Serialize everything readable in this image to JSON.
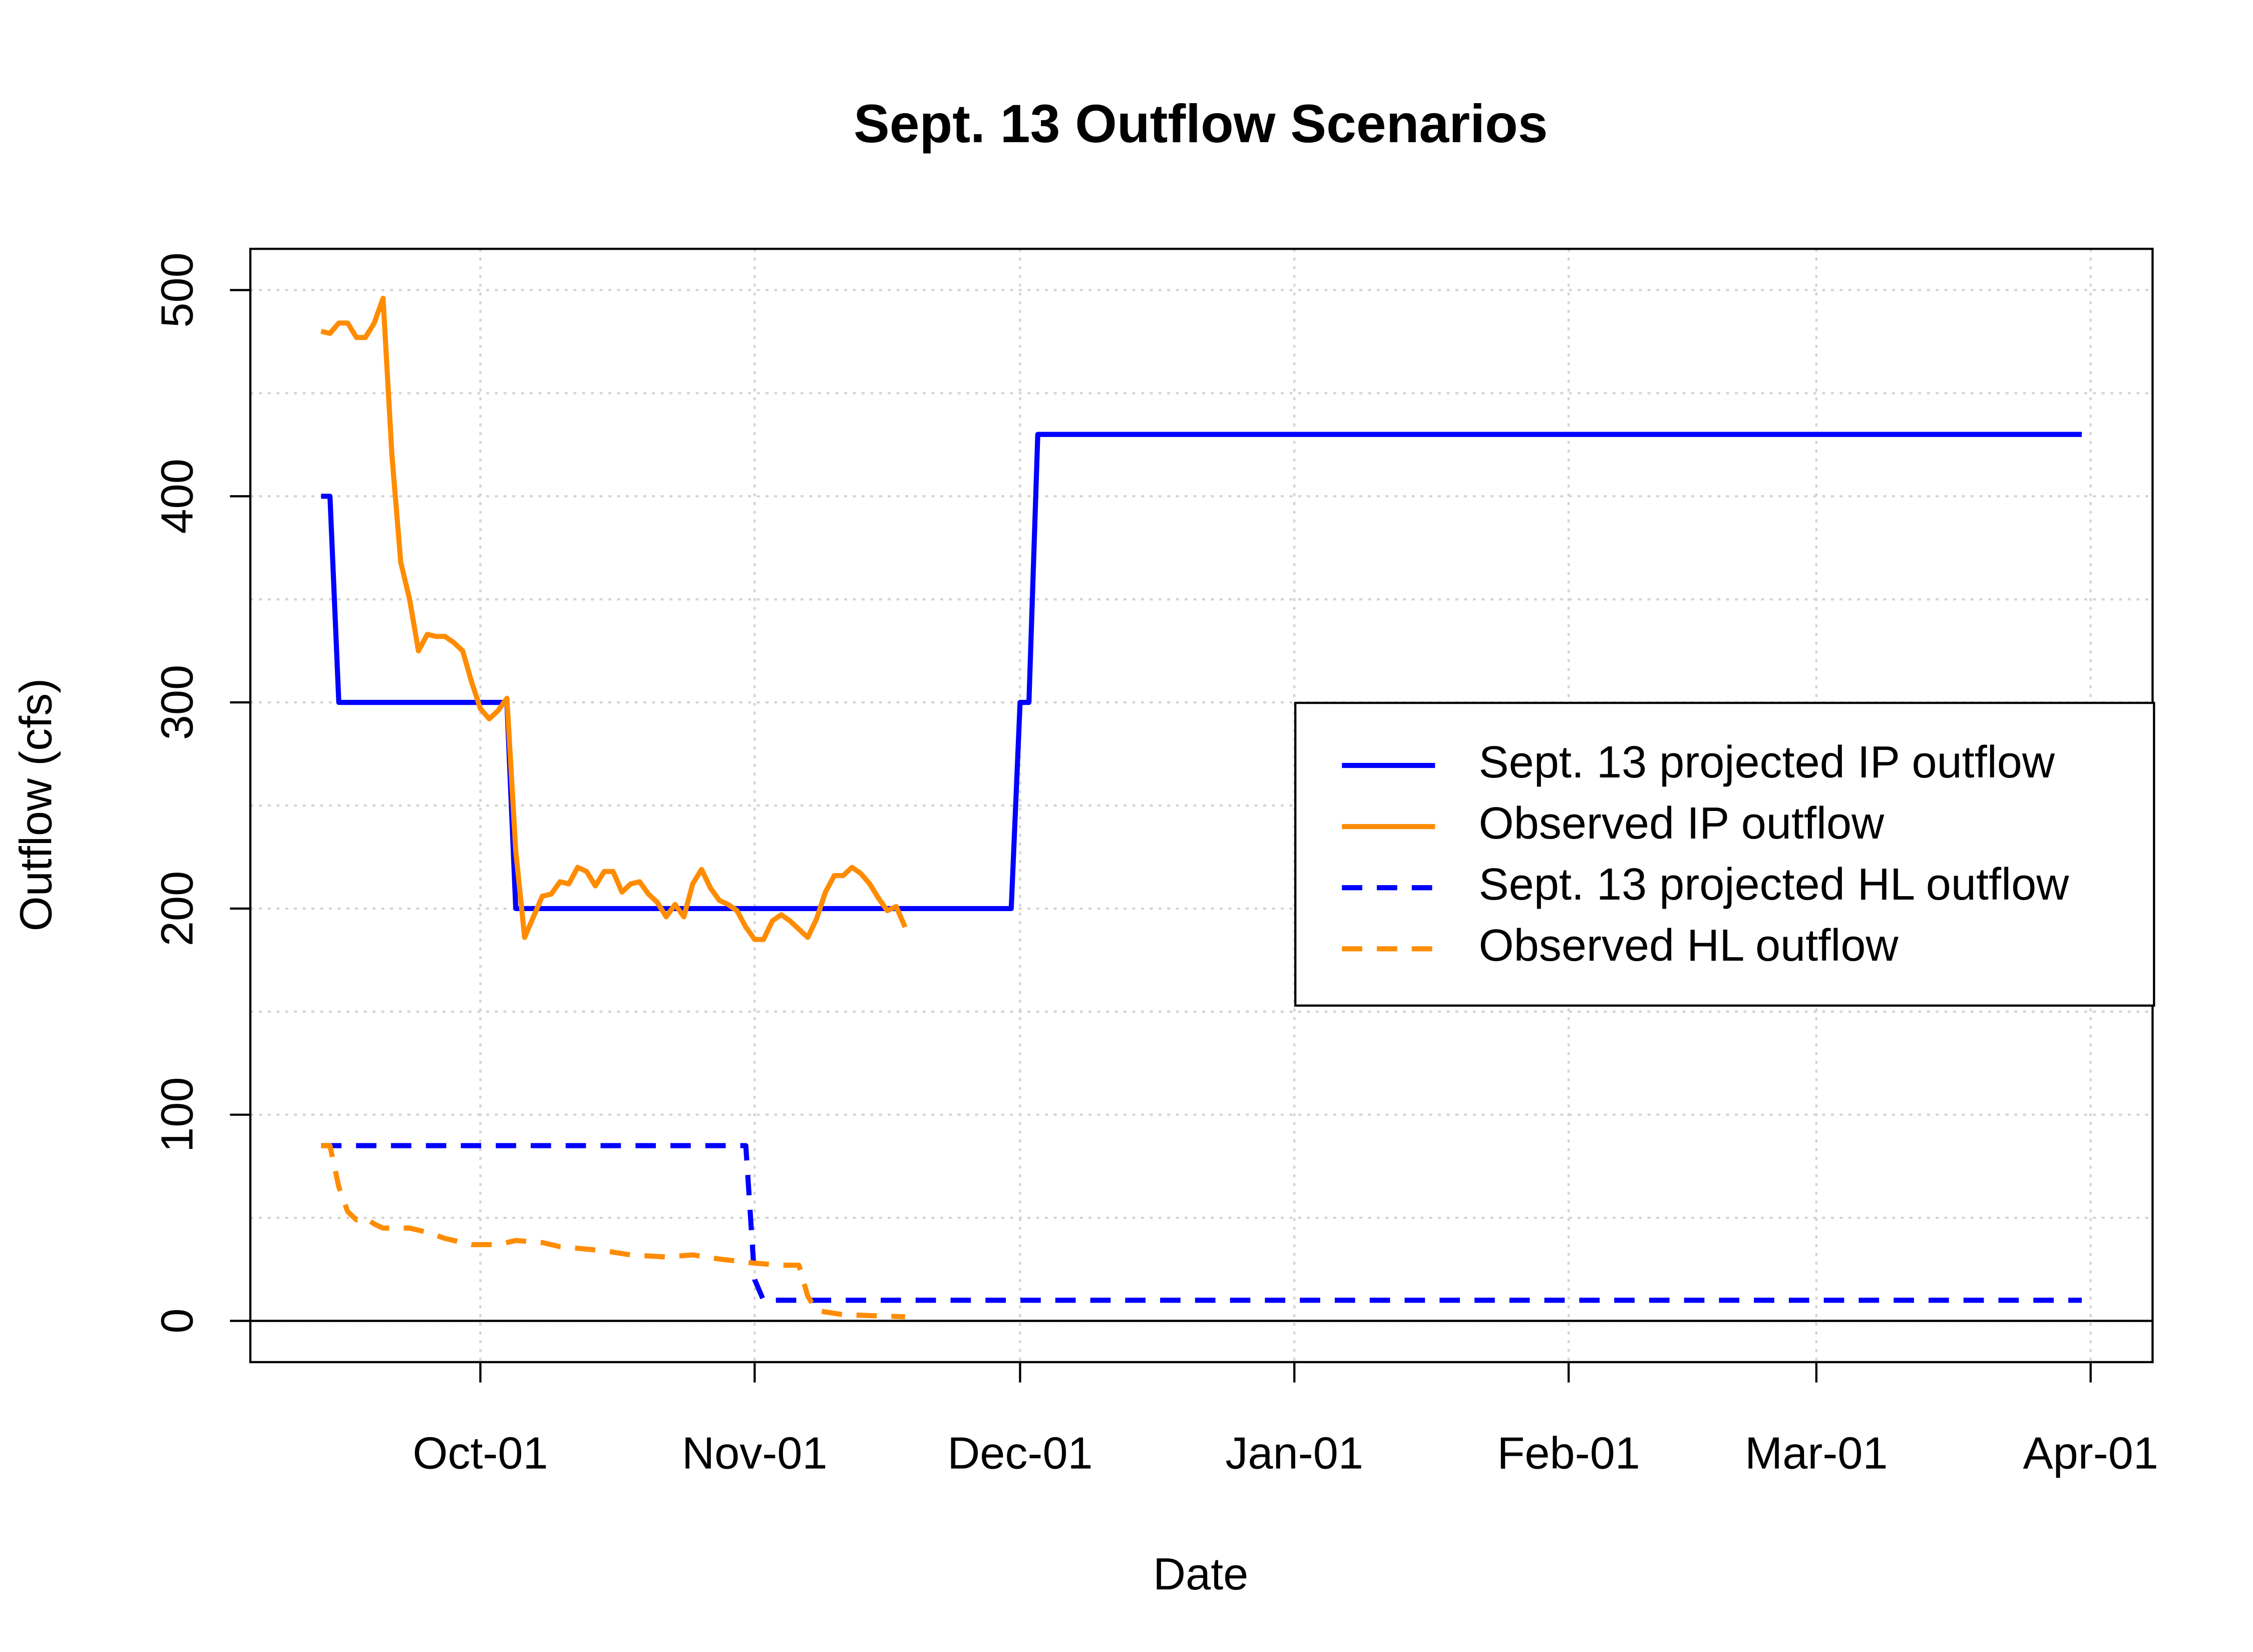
{
  "chart_data": {
    "type": "line",
    "title": "Sept. 13 Outflow Scenarios",
    "x_label": "Date",
    "y_label": "Outflow (cfs)",
    "xlim": [
      "Sep-05",
      "Apr-08"
    ],
    "xticks": [
      "Oct-01",
      "Nov-01",
      "Dec-01",
      "Jan-01",
      "Feb-01",
      "Mar-01",
      "Apr-01"
    ],
    "ylim": [
      -20,
      520
    ],
    "yticks": [
      0,
      100,
      200,
      300,
      400,
      500
    ],
    "ygrid": [
      0,
      50,
      100,
      150,
      200,
      250,
      300,
      350,
      400,
      450,
      500
    ],
    "hline": 0,
    "grid": true,
    "legend": "right",
    "series": [
      {
        "name": "Sept. 13 projected IP outflow",
        "color": "#0000ff",
        "dash": false,
        "x": [
          "Sep-13",
          "Sep-14",
          "Sep-15",
          "Oct-04",
          "Oct-05",
          "Nov-30",
          "Dec-01",
          "Dec-02",
          "Dec-03",
          "Mar-31"
        ],
        "values": [
          400,
          400,
          300,
          300,
          200,
          200,
          300,
          300,
          430,
          430
        ]
      },
      {
        "name": "Observed IP outflow",
        "color": "#ff8c00",
        "dash": false,
        "x": [
          "Sep-13",
          "Sep-14",
          "Sep-15",
          "Sep-16",
          "Sep-17",
          "Sep-18",
          "Sep-19",
          "Sep-20",
          "Sep-21",
          "Sep-22",
          "Sep-23",
          "Sep-24",
          "Sep-25",
          "Sep-26",
          "Sep-27",
          "Sep-28",
          "Sep-29",
          "Sep-30",
          "Oct-01",
          "Oct-02",
          "Oct-03",
          "Oct-04",
          "Oct-05",
          "Oct-06",
          "Oct-07",
          "Oct-08",
          "Oct-09",
          "Oct-10",
          "Oct-11",
          "Oct-12",
          "Oct-13",
          "Oct-14",
          "Oct-15",
          "Oct-16",
          "Oct-17",
          "Oct-18",
          "Oct-19",
          "Oct-20",
          "Oct-21",
          "Oct-22",
          "Oct-23",
          "Oct-24",
          "Oct-25",
          "Oct-26",
          "Oct-27",
          "Oct-28",
          "Oct-29",
          "Oct-30",
          "Oct-31",
          "Nov-01",
          "Nov-02",
          "Nov-03",
          "Nov-04",
          "Nov-05",
          "Nov-06",
          "Nov-07",
          "Nov-08",
          "Nov-09",
          "Nov-10",
          "Nov-11",
          "Nov-12",
          "Nov-13",
          "Nov-14",
          "Nov-15",
          "Nov-16",
          "Nov-17",
          "Nov-18"
        ],
        "values": [
          480,
          479,
          484,
          484,
          477,
          477,
          484,
          496,
          420,
          368,
          350,
          325,
          333,
          332,
          332,
          329,
          325,
          310,
          297,
          292,
          296,
          302,
          228,
          186,
          196,
          206,
          207,
          213,
          212,
          220,
          218,
          211,
          218,
          218,
          208,
          212,
          213,
          207,
          203,
          196,
          202,
          196,
          212,
          219,
          210,
          204,
          202,
          199,
          191,
          185,
          185,
          194,
          197,
          194,
          190,
          186,
          195,
          208,
          216,
          216,
          220,
          217,
          212,
          205,
          199,
          201,
          191
        ]
      },
      {
        "name": "Sept. 13 projected HL outflow",
        "color": "#0000ff",
        "dash": true,
        "x": [
          "Sep-13",
          "Oct-31",
          "Nov-01",
          "Nov-02",
          "Mar-31"
        ],
        "values": [
          85,
          85,
          20,
          10,
          10
        ]
      },
      {
        "name": "Observed HL outflow",
        "color": "#ff8c00",
        "dash": true,
        "x": [
          "Sep-13",
          "Sep-14",
          "Sep-15",
          "Sep-16",
          "Sep-17",
          "Sep-18",
          "Sep-19",
          "Sep-20",
          "Sep-23",
          "Sep-25",
          "Sep-27",
          "Sep-30",
          "Oct-03",
          "Oct-05",
          "Oct-08",
          "Oct-10",
          "Oct-15",
          "Oct-18",
          "Oct-22",
          "Oct-25",
          "Oct-28",
          "Nov-01",
          "Nov-04",
          "Nov-06",
          "Nov-07",
          "Nov-08",
          "Nov-11",
          "Nov-18"
        ],
        "values": [
          85,
          85,
          65,
          53,
          49,
          50,
          47,
          45,
          45,
          43,
          40,
          37,
          37,
          39,
          38,
          36,
          34,
          32,
          31,
          32,
          30,
          28,
          27,
          27,
          12,
          5,
          3,
          2
        ]
      }
    ]
  }
}
